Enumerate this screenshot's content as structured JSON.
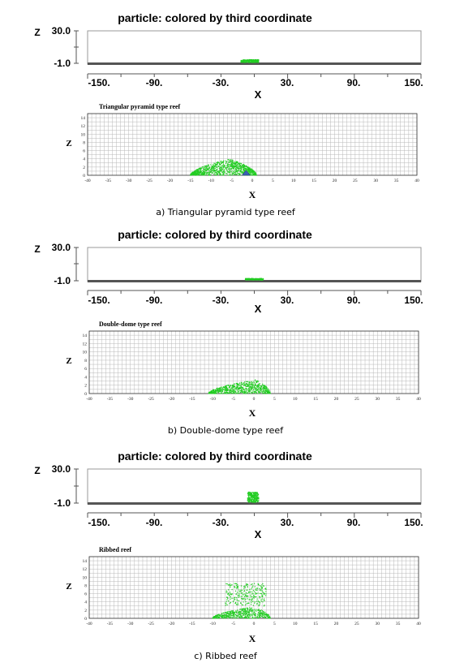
{
  "panels": [
    {
      "caption": "a)  Triangular  pyramid  type  reef",
      "overview": {
        "title": "particle: colored by third coordinate",
        "zlabel": "Z",
        "xlabel": "X",
        "ztick_labels": [
          "30.0",
          "-1.0"
        ],
        "xtick_labels": [
          "-150.",
          "-90.",
          "-30.",
          "30.",
          "90.",
          "150."
        ],
        "xlim": [
          -150,
          150
        ],
        "zlim": [
          -1,
          30
        ],
        "cloud": {
          "xmin": -12,
          "xmax": 4,
          "ztop": 2.6
        }
      },
      "detail": {
        "title": "Triangular pyramid type reef",
        "zlabel": "Z",
        "xlabel": "X",
        "xlim": [
          -40,
          40
        ],
        "ylim": [
          0,
          15
        ],
        "xticks": [
          -40,
          -35,
          -30,
          -25,
          -20,
          -15,
          -10,
          -5,
          0,
          5,
          10,
          15,
          20,
          25,
          30,
          35,
          40
        ],
        "yticks": [
          0,
          2,
          4,
          6,
          8,
          10,
          12,
          14
        ],
        "reef_marker": {
          "x": -1.5,
          "height": 1.2,
          "color": "#3b5fb5"
        }
      }
    },
    {
      "caption": "b)  Double-dome  type  reef",
      "overview": {
        "title": "particle: colored by third coordinate",
        "zlabel": "Z",
        "xlabel": "X",
        "ztick_labels": [
          "30.0",
          "-1.0"
        ],
        "xtick_labels": [
          "-150.",
          "-90.",
          "-30.",
          "30.",
          "90.",
          "150."
        ],
        "xlim": [
          -150,
          150
        ],
        "zlim": [
          -1,
          30
        ],
        "cloud": {
          "xmin": -8,
          "xmax": 8,
          "ztop": 1.2
        }
      },
      "detail": {
        "title": "Double-dome type reef",
        "zlabel": "Z",
        "xlabel": "X",
        "xlim": [
          -40,
          40
        ],
        "ylim": [
          0,
          15
        ],
        "xticks": [
          -40,
          -35,
          -30,
          -25,
          -20,
          -15,
          -10,
          -5,
          0,
          5,
          10,
          15,
          20,
          25,
          30,
          35,
          40
        ],
        "yticks": [
          0,
          2,
          4,
          6,
          8,
          10,
          12,
          14
        ]
      }
    },
    {
      "caption": "c)  Ribbed  reef",
      "overview": {
        "title": "particle: colored by third coordinate",
        "zlabel": "Z",
        "xlabel": "X",
        "ztick_labels": [
          "30.0",
          "-1.0"
        ],
        "xtick_labels": [
          "-150.",
          "-90.",
          "-30.",
          "30.",
          "90.",
          "150."
        ],
        "xlim": [
          -150,
          150
        ],
        "zlim": [
          -1,
          30
        ],
        "cloud": {
          "xmin": -6,
          "xmax": 4,
          "ztop": 9
        }
      },
      "detail": {
        "title": "Ribbed reef",
        "zlabel": "Z",
        "xlabel": "X",
        "xlim": [
          -40,
          40
        ],
        "ylim": [
          0,
          15
        ],
        "xticks": [
          -40,
          -35,
          -30,
          -25,
          -20,
          -15,
          -10,
          -5,
          0,
          5,
          10,
          15,
          20,
          25,
          30,
          35,
          40
        ],
        "yticks": [
          0,
          2,
          4,
          6,
          8,
          10,
          12,
          14
        ]
      }
    }
  ],
  "chart_data": [
    {
      "type": "scatter",
      "title": "Triangular pyramid type reef",
      "xlabel": "X",
      "ylabel": "Z",
      "xlim": [
        -40,
        40
      ],
      "ylim": [
        0,
        15
      ],
      "grid": true,
      "particle_color": "#22cc22",
      "clouds": [
        {
          "xmin": -15,
          "xmax": 1,
          "ymax": 4.0,
          "peak_x": -5.5,
          "count": 900
        }
      ]
    },
    {
      "type": "scatter",
      "title": "Double-dome type reef",
      "xlabel": "X",
      "ylabel": "Z",
      "xlim": [
        -40,
        40
      ],
      "ylim": [
        0,
        15
      ],
      "grid": true,
      "particle_color": "#22cc22",
      "clouds": [
        {
          "xmin": -11,
          "xmax": 4,
          "ymax": 3.3,
          "peak_x": 0.5,
          "count": 650
        }
      ]
    },
    {
      "type": "scatter",
      "title": "Ribbed reef",
      "xlabel": "X",
      "ylabel": "Z",
      "xlim": [
        -40,
        40
      ],
      "ylim": [
        0,
        15
      ],
      "grid": true,
      "particle_color": "#22cc22",
      "clouds": [
        {
          "xmin": -10,
          "xmax": 4,
          "ymax": 2.8,
          "peak_x": 0,
          "count": 500
        },
        {
          "xmin": -7,
          "xmax": 3,
          "ymin": 3,
          "ymax": 8.5,
          "sparse": true,
          "count": 260
        }
      ]
    }
  ]
}
